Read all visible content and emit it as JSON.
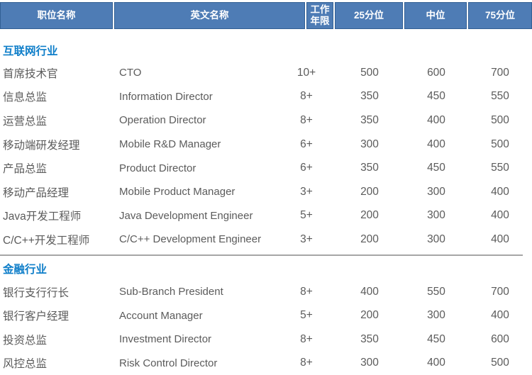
{
  "colors": {
    "header_bg": "#4e7cb5",
    "header_border": "#315f94",
    "header_text": "#ffffff",
    "section_title": "#0e7ec9",
    "body_text": "#5b5b5b",
    "divider": "#a6a6a6",
    "background": "#ffffff"
  },
  "table": {
    "columns": [
      "职位名称",
      "英文名称",
      "工作年限",
      "25分位",
      "中位",
      "75分位"
    ],
    "sections": [
      {
        "title": "互联网行业",
        "rows": [
          [
            "首席技术官",
            "CTO",
            "10+",
            "500",
            "600",
            "700"
          ],
          [
            "信息总监",
            "Information Director",
            "8+",
            "350",
            "450",
            "550"
          ],
          [
            "运营总监",
            "Operation Director",
            "8+",
            "350",
            "400",
            "500"
          ],
          [
            "移动端研发经理",
            "Mobile R&D Manager",
            "6+",
            "300",
            "400",
            "500"
          ],
          [
            "产品总监",
            "Product Director",
            "6+",
            "350",
            "450",
            "550"
          ],
          [
            "移动产品经理",
            "Mobile Product Manager",
            "3+",
            "200",
            "300",
            "400"
          ],
          [
            "Java开发工程师",
            "Java Development Engineer",
            "5+",
            "200",
            "300",
            "400"
          ],
          [
            "C/C++开发工程师",
            "C/C++ Development Engineer",
            "3+",
            "200",
            "300",
            "400"
          ]
        ]
      },
      {
        "title": "金融行业",
        "rows": [
          [
            "银行支行行长",
            "Sub-Branch President",
            "8+",
            "400",
            "550",
            "700"
          ],
          [
            "银行客户经理",
            "Account Manager",
            "5+",
            "200",
            "300",
            "400"
          ],
          [
            "投资总监",
            "Investment Director",
            "8+",
            "350",
            "450",
            "600"
          ],
          [
            "风控总监",
            "Risk Control Director",
            "8+",
            "300",
            "400",
            "500"
          ]
        ]
      }
    ]
  }
}
